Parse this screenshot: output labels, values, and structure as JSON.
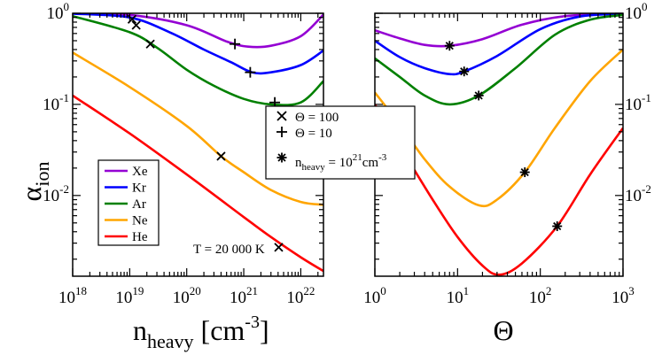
{
  "chart_data": [
    {
      "type": "line",
      "panel": "left",
      "xlabel": {
        "base": "n",
        "sub": "heavy",
        "unit_pre": " [cm",
        "unit_sup": "-3",
        "unit_post": "]"
      },
      "ylabel": {
        "base": "α",
        "sub": "ion"
      },
      "x_scale": "log",
      "y_scale": "log",
      "xlim": [
        1e+18,
        2.5e+22
      ],
      "ylim": [
        0.0013,
        1.0
      ],
      "x_ticks": [
        {
          "value": 1e+18,
          "mant": "10",
          "exp": "18"
        },
        {
          "value": 1e+19,
          "mant": "10",
          "exp": "19"
        },
        {
          "value": 1e+20,
          "mant": "10",
          "exp": "20"
        },
        {
          "value": 1e+21,
          "mant": "10",
          "exp": "21"
        },
        {
          "value": 1e+22,
          "mant": "10",
          "exp": "22"
        }
      ],
      "y_ticks": [
        {
          "value": 0.01,
          "mant": "10",
          "exp": "-2"
        },
        {
          "value": 0.1,
          "mant": "10",
          "exp": "-1"
        },
        {
          "value": 1.0,
          "mant": "10",
          "exp": "0"
        }
      ],
      "annotation": "T = 20 000 K",
      "series": [
        {
          "name": "Xe",
          "color": "#9400d3",
          "points": [
            [
              1e+18,
              0.998
            ],
            [
              1e+19,
              0.96
            ],
            [
              1e+20,
              0.74
            ],
            [
              5e+20,
              0.49
            ],
            [
              1.2e+21,
              0.43
            ],
            [
              3e+21,
              0.44
            ],
            [
              1e+22,
              0.56
            ],
            [
              2.5e+22,
              0.97
            ]
          ]
        },
        {
          "name": "Kr",
          "color": "#0000ff",
          "points": [
            [
              1e+18,
              0.99
            ],
            [
              1e+19,
              0.9
            ],
            [
              5e+19,
              0.62
            ],
            [
              2e+20,
              0.4
            ],
            [
              6e+20,
              0.29
            ],
            [
              1.4e+21,
              0.225
            ],
            [
              3e+21,
              0.225
            ],
            [
              1e+22,
              0.27
            ],
            [
              2.5e+22,
              0.39
            ]
          ]
        },
        {
          "name": "Ar",
          "color": "#008000",
          "points": [
            [
              1e+18,
              0.93
            ],
            [
              1e+19,
              0.62
            ],
            [
              3e+19,
              0.42
            ],
            [
              1e+20,
              0.24
            ],
            [
              3e+20,
              0.16
            ],
            [
              1e+21,
              0.115
            ],
            [
              3e+21,
              0.1
            ],
            [
              1e+22,
              0.105
            ],
            [
              2.5e+22,
              0.18
            ]
          ]
        },
        {
          "name": "Ne",
          "color": "#ffa500",
          "points": [
            [
              1e+18,
              0.37
            ],
            [
              1e+19,
              0.155
            ],
            [
              1e+20,
              0.058
            ],
            [
              4e+20,
              0.027
            ],
            [
              1e+21,
              0.018
            ],
            [
              3e+21,
              0.0115
            ],
            [
              1e+22,
              0.0085
            ],
            [
              2.5e+22,
              0.0079
            ]
          ]
        },
        {
          "name": "He",
          "color": "#ff0000",
          "points": [
            [
              1e+18,
              0.125
            ],
            [
              1e+19,
              0.048
            ],
            [
              1e+20,
              0.017
            ],
            [
              1e+21,
              0.0058
            ],
            [
              3e+21,
              0.0035
            ],
            [
              1e+22,
              0.0021
            ],
            [
              2.5e+22,
              0.00148
            ]
          ]
        }
      ],
      "markers_theta100": [
        [
          1.1e+19,
          0.86
        ],
        [
          1.3e+19,
          0.74
        ],
        [
          2.3e+19,
          0.46
        ],
        [
          4e+20,
          0.027
        ],
        [
          4.1e+21,
          0.0027
        ]
      ],
      "markers_theta10": [
        [
          7e+20,
          0.46
        ],
        [
          1.3e+21,
          0.225
        ],
        [
          3.5e+21,
          0.105
        ]
      ]
    },
    {
      "type": "line",
      "panel": "right",
      "xlabel": {
        "text": "Θ"
      },
      "x_scale": "log",
      "y_scale": "log",
      "xlim": [
        1,
        1000
      ],
      "ylim": [
        0.0013,
        1.0
      ],
      "x_ticks": [
        {
          "value": 1,
          "mant": "10",
          "exp": "0"
        },
        {
          "value": 10,
          "mant": "10",
          "exp": "1"
        },
        {
          "value": 100,
          "mant": "10",
          "exp": "2"
        },
        {
          "value": 1000,
          "mant": "10",
          "exp": "3"
        }
      ],
      "y_ticks": [
        {
          "value": 0.01,
          "mant": "10",
          "exp": "-2"
        },
        {
          "value": 0.1,
          "mant": "10",
          "exp": "-1"
        },
        {
          "value": 1.0,
          "mant": "10",
          "exp": "0"
        }
      ],
      "series": [
        {
          "name": "Xe",
          "color": "#9400d3",
          "points": [
            [
              1,
              0.65
            ],
            [
              2,
              0.53
            ],
            [
              4,
              0.45
            ],
            [
              8,
              0.44
            ],
            [
              20,
              0.52
            ],
            [
              60,
              0.75
            ],
            [
              200,
              0.93
            ],
            [
              1000,
              0.995
            ]
          ]
        },
        {
          "name": "Kr",
          "color": "#0000ff",
          "points": [
            [
              1,
              0.5
            ],
            [
              2,
              0.33
            ],
            [
              4,
              0.25
            ],
            [
              8,
              0.215
            ],
            [
              12,
              0.23
            ],
            [
              30,
              0.34
            ],
            [
              100,
              0.67
            ],
            [
              300,
              0.92
            ],
            [
              1000,
              0.99
            ]
          ]
        },
        {
          "name": "Ar",
          "color": "#008000",
          "points": [
            [
              1,
              0.32
            ],
            [
              2,
              0.2
            ],
            [
              4,
              0.125
            ],
            [
              8,
              0.1
            ],
            [
              18,
              0.125
            ],
            [
              50,
              0.25
            ],
            [
              150,
              0.58
            ],
            [
              400,
              0.85
            ],
            [
              1000,
              0.96
            ]
          ]
        },
        {
          "name": "Ne",
          "color": "#ffa500",
          "points": [
            [
              1,
              0.135
            ],
            [
              2,
              0.06
            ],
            [
              4,
              0.025
            ],
            [
              8,
              0.0125
            ],
            [
              18,
              0.0078
            ],
            [
              30,
              0.009
            ],
            [
              65,
              0.018
            ],
            [
              150,
              0.055
            ],
            [
              400,
              0.18
            ],
            [
              1000,
              0.4
            ]
          ]
        },
        {
          "name": "He",
          "color": "#ff0000",
          "points": [
            [
              1,
              0.1
            ],
            [
              2,
              0.035
            ],
            [
              5,
              0.009
            ],
            [
              10,
              0.0035
            ],
            [
              20,
              0.0017
            ],
            [
              32,
              0.00135
            ],
            [
              60,
              0.0018
            ],
            [
              160,
              0.0046
            ],
            [
              400,
              0.017
            ],
            [
              1000,
              0.055
            ]
          ]
        }
      ],
      "markers_nheavy": [
        [
          8,
          0.44
        ],
        [
          12,
          0.23
        ],
        [
          18,
          0.125
        ],
        [
          65,
          0.018
        ],
        [
          160,
          0.0046
        ]
      ]
    }
  ],
  "legend_species": [
    "Xe",
    "Kr",
    "Ar",
    "Ne",
    "He"
  ],
  "legend_markers": {
    "theta100": "Θ = 100",
    "theta10": "Θ = 10",
    "nheavy_base": "n",
    "nheavy_sub": "heavy",
    "nheavy_eq": " = 10",
    "nheavy_exp": "21",
    "nheavy_unit": "cm",
    "nheavy_unit_exp": "-3"
  }
}
